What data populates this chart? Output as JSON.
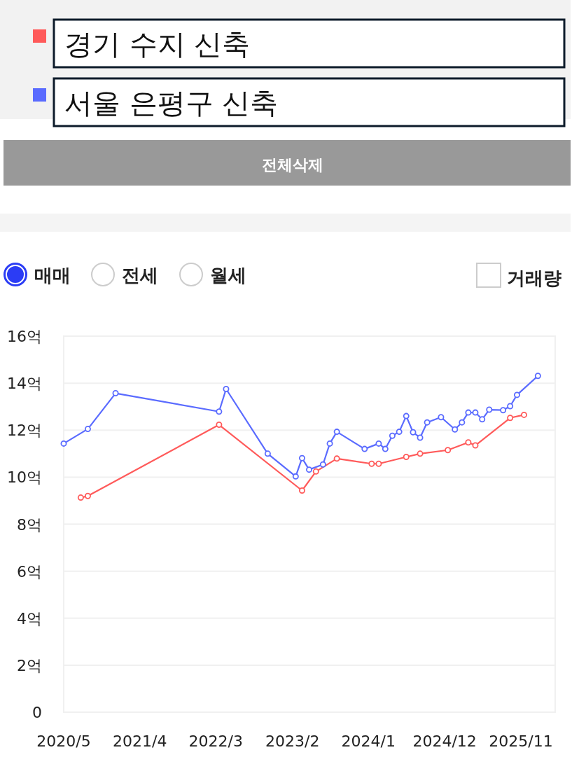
{
  "chart_data": {
    "type": "line",
    "series": [
      {
        "name": "경기 수지 신축",
        "color": "#ff5a5a",
        "x": [
          "2020-07-15",
          "2020-08-15",
          "2022-03-15",
          "2023-03-15",
          "2023-05-15",
          "2023-08-15",
          "2024-01-15",
          "2024-02-15",
          "2024-06-15",
          "2024-08-15",
          "2024-12-15",
          "2025-03-15",
          "2025-04-15",
          "2025-09-15",
          "2025-11-15"
        ],
        "values": [
          9.13,
          9.2,
          12.23,
          9.43,
          10.24,
          10.79,
          10.57,
          10.57,
          10.86,
          11.0,
          11.15,
          11.48,
          11.35,
          12.52,
          12.65
        ]
      },
      {
        "name": "서울 은평구 신축",
        "color": "#5a6bff",
        "x": [
          "2020-05-01",
          "2020-08-15",
          "2020-12-15",
          "2022-03-15",
          "2022-04-15",
          "2022-10-15",
          "2023-02-15",
          "2023-03-15",
          "2023-04-15",
          "2023-06-15",
          "2023-07-15",
          "2023-08-15",
          "2023-12-15",
          "2024-02-15",
          "2024-03-15",
          "2024-04-15",
          "2024-05-15",
          "2024-06-15",
          "2024-07-15",
          "2024-08-15",
          "2024-09-15",
          "2024-11-15",
          "2025-01-15",
          "2025-02-15",
          "2025-03-15",
          "2025-04-15",
          "2025-05-15",
          "2025-06-15",
          "2025-08-15",
          "2025-09-15",
          "2025-10-15",
          "2026-01-15"
        ],
        "values": [
          11.43,
          12.05,
          13.57,
          12.79,
          13.75,
          11.0,
          10.03,
          10.81,
          10.32,
          10.54,
          11.43,
          11.93,
          11.2,
          11.43,
          11.2,
          11.76,
          11.93,
          12.6,
          11.91,
          11.68,
          12.33,
          12.55,
          12.03,
          12.33,
          12.75,
          12.75,
          12.46,
          12.87,
          12.85,
          13.02,
          13.5,
          14.31
        ]
      }
    ],
    "xlim": [
      "2020-05-01",
      "2026-04-01"
    ],
    "xticks": [
      {
        "value": "2020-05-01",
        "label": "2020/5"
      },
      {
        "value": "2021-04-01",
        "label": "2021/4"
      },
      {
        "value": "2022-03-01",
        "label": "2022/3"
      },
      {
        "value": "2023-02-01",
        "label": "2023/2"
      },
      {
        "value": "2024-01-01",
        "label": "2024/1"
      },
      {
        "value": "2024-12-01",
        "label": "2024/12"
      },
      {
        "value": "2025-11-01",
        "label": "2025/11"
      }
    ],
    "ylim": [
      0,
      16
    ],
    "yticks": [
      {
        "value": 0,
        "label": "0"
      },
      {
        "value": 2,
        "label": "2억"
      },
      {
        "value": 4,
        "label": "4억"
      },
      {
        "value": 6,
        "label": "6억"
      },
      {
        "value": 8,
        "label": "8억"
      },
      {
        "value": 10,
        "label": "10억"
      },
      {
        "value": 12,
        "label": "12억"
      },
      {
        "value": 14,
        "label": "14억"
      },
      {
        "value": 16,
        "label": "16억"
      }
    ],
    "grid": "y",
    "marker": "circle",
    "line_style": "solid",
    "legend": "top",
    "annotations": [
      "전체삭제",
      "매매",
      "전세",
      "월세",
      "거래량"
    ]
  }
}
